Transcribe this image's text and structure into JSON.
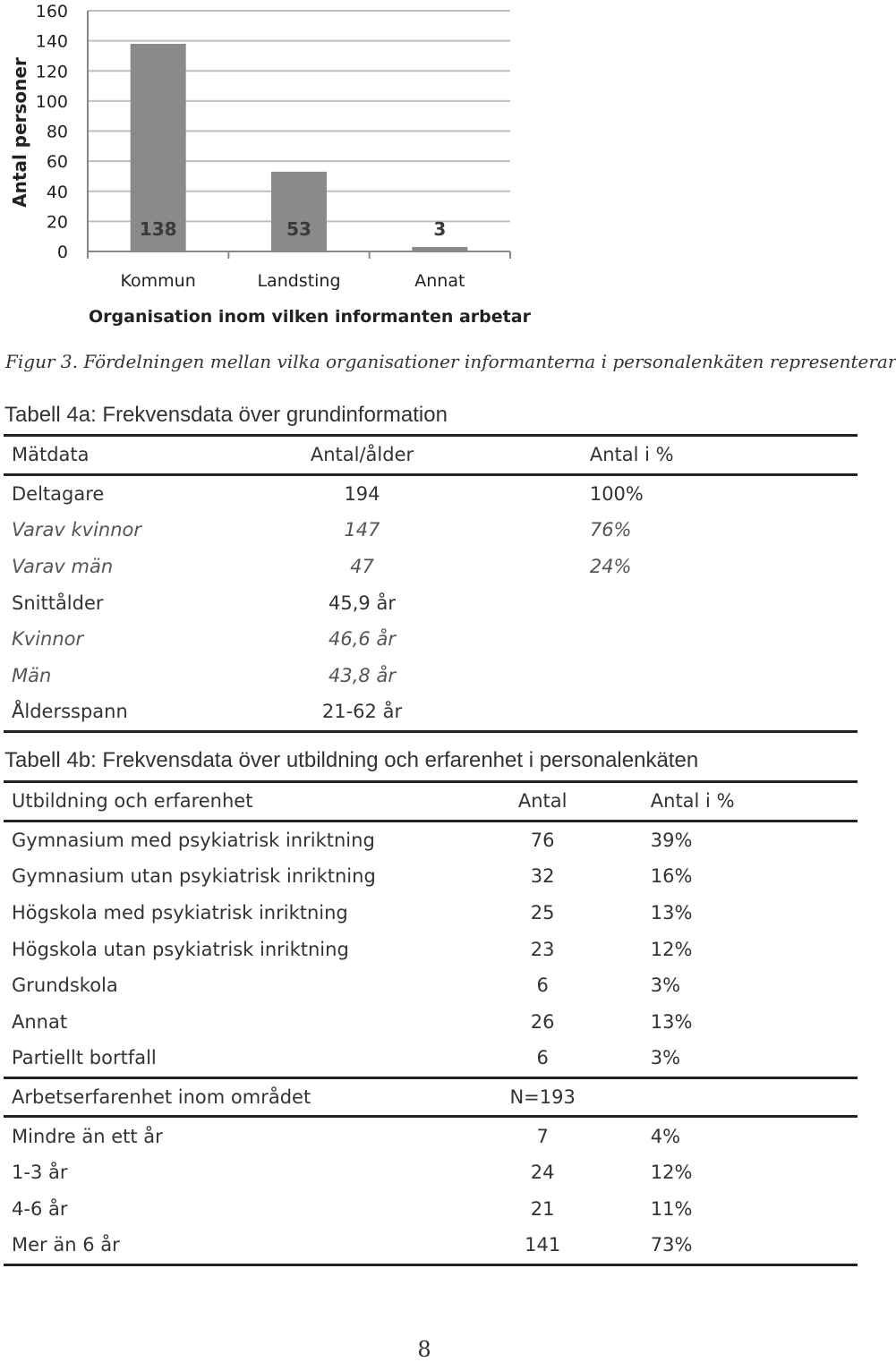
{
  "chart_data": {
    "type": "bar",
    "categories": [
      "Kommun",
      "Landsting",
      "Annat"
    ],
    "values": [
      138,
      53,
      3
    ],
    "data_labels": [
      "138",
      "53",
      "3"
    ],
    "xlabel": "Organisation inom vilken informanten arbetar",
    "ylabel": "Antal personer",
    "ylim": [
      0,
      160
    ],
    "yticks": [
      "0",
      "20",
      "40",
      "60",
      "80",
      "100",
      "120",
      "140",
      "160"
    ],
    "grid": true,
    "colors": {
      "bar": "#8a8a8a",
      "grid": "#bfbfbf",
      "text": "#222222"
    }
  },
  "figure_caption": "Figur 3. Fördelningen mellan vilka organisationer informanterna i personalenkäten representerar",
  "table_4a": {
    "title": "Tabell 4a: Frekvensdata över grundinformation",
    "header": [
      "Mätdata",
      "Antal/ålder",
      "Antal i %"
    ],
    "rows": [
      {
        "cells": [
          "Deltagare",
          "194",
          "100%"
        ]
      },
      {
        "cells": [
          "Varav kvinnor",
          "147",
          "76%"
        ]
      },
      {
        "cells": [
          "Varav män",
          "47",
          "24%"
        ]
      },
      {
        "cells": [
          "Snittålder",
          "45,9 år",
          ""
        ]
      },
      {
        "cells": [
          "Kvinnor",
          "46,6 år",
          ""
        ]
      },
      {
        "cells": [
          "Män",
          "43,8 år",
          ""
        ]
      },
      {
        "cells": [
          "Åldersspann",
          "21-62 år",
          ""
        ]
      }
    ]
  },
  "table_4b": {
    "title": "Tabell 4b: Frekvensdata över utbildning och erfarenhet i personalenkäten",
    "header": [
      "Utbildning och erfarenhet",
      "Antal",
      "Antal i %"
    ],
    "rows": [
      {
        "cells": [
          "Gymnasium med psykiatrisk inriktning",
          "76",
          "39%"
        ]
      },
      {
        "cells": [
          "Gymnasium utan psykiatrisk inriktning",
          "32",
          "16%"
        ]
      },
      {
        "cells": [
          "Högskola med psykiatrisk inriktning",
          "25",
          "13%"
        ]
      },
      {
        "cells": [
          "Högskola utan psykiatrisk inriktning",
          "23",
          "12%"
        ]
      },
      {
        "cells": [
          "Grundskola",
          "6",
          "3%"
        ]
      },
      {
        "cells": [
          "Annat",
          "26",
          "13%"
        ]
      },
      {
        "cells": [
          "Partiellt bortfall",
          "6",
          "3%"
        ]
      },
      {
        "cells": [
          "Arbetserfarenhet inom området",
          "N=193",
          ""
        ]
      },
      {
        "cells": [
          "Mindre än ett år",
          "7",
          "4%"
        ]
      },
      {
        "cells": [
          "1-3 år",
          "24",
          "12%"
        ]
      },
      {
        "cells": [
          "4-6 år",
          "21",
          "11%"
        ]
      },
      {
        "cells": [
          "Mer än 6 år",
          "141",
          "73%"
        ]
      }
    ]
  },
  "page_number": "8"
}
